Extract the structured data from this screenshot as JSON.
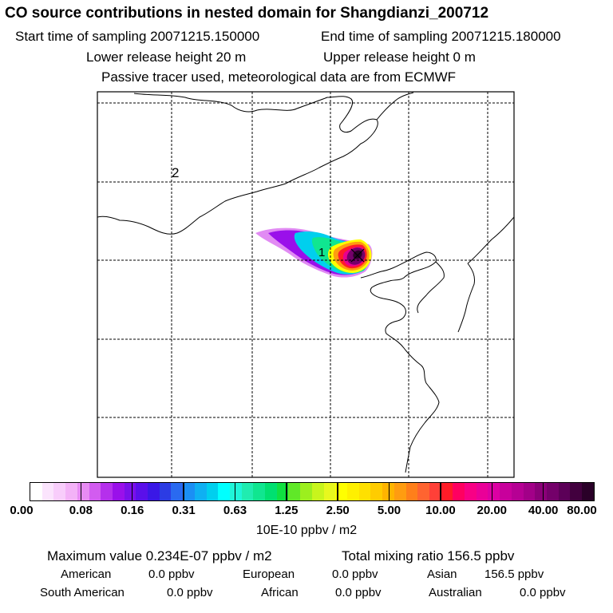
{
  "header": {
    "title": "CO  source contributions in nested domain for Shangdianzi_200712",
    "start_label": "Start time of sampling 20071215.150000",
    "end_label": "End time of sampling 20071215.180000",
    "lower_release": "Lower release height   20 m",
    "upper_release": "Upper release height    0 m",
    "info": "Passive tracer used, meteorological data are from ECMWF"
  },
  "map": {
    "label_1": "1",
    "label_2": "2"
  },
  "colorbar": {
    "tick_labels": [
      "0.00",
      "0.08",
      "0.16",
      "0.31",
      "0.63",
      "1.25",
      "2.50",
      "5.00",
      "10.00",
      "20.00",
      "40.00",
      "80.00"
    ],
    "unit": "10E-10 ppbv / m2",
    "colors": [
      "#ffffff",
      "#fbe4fd",
      "#f8cdfb",
      "#f3b2f7",
      "#e78bf3",
      "#d25cf0",
      "#b530ec",
      "#9a10ea",
      "#7a10ea",
      "#5a10ea",
      "#3a18e6",
      "#2c3ce4",
      "#2a6af0",
      "#1b8ff4",
      "#0fb0f2",
      "#00cfee",
      "#00ffff",
      "#1ff5d8",
      "#20ecb0",
      "#10e690",
      "#00e070",
      "#10e040",
      "#60e828",
      "#9cef1e",
      "#c8f51c",
      "#e8f81e",
      "#ffff00",
      "#fff000",
      "#ffe000",
      "#ffcc00",
      "#ffb400",
      "#ff9c10",
      "#ff7f1a",
      "#ff6430",
      "#ff4038",
      "#ff1c28",
      "#ff0060",
      "#f80085",
      "#ea0098",
      "#dc00a3",
      "#c8009c",
      "#b60094",
      "#a20088",
      "#8a0078",
      "#74006a",
      "#5c0058",
      "#42003e",
      "#2a0028"
    ]
  },
  "stats": {
    "max_label": "Maximum value  0.234E-07 ppbv / m2",
    "total_label": "Total mixing ratio      156.5 ppbv",
    "regions": [
      {
        "name": "American",
        "value": "0.0 ppbv"
      },
      {
        "name": "European",
        "value": "0.0 ppbv"
      },
      {
        "name": "Asian",
        "value": "156.5 ppbv"
      },
      {
        "name": "South American",
        "value": "0.0 ppbv"
      },
      {
        "name": "African",
        "value": "0.0 ppbv"
      },
      {
        "name": "Australian",
        "value": "0.0 ppbv"
      }
    ]
  }
}
